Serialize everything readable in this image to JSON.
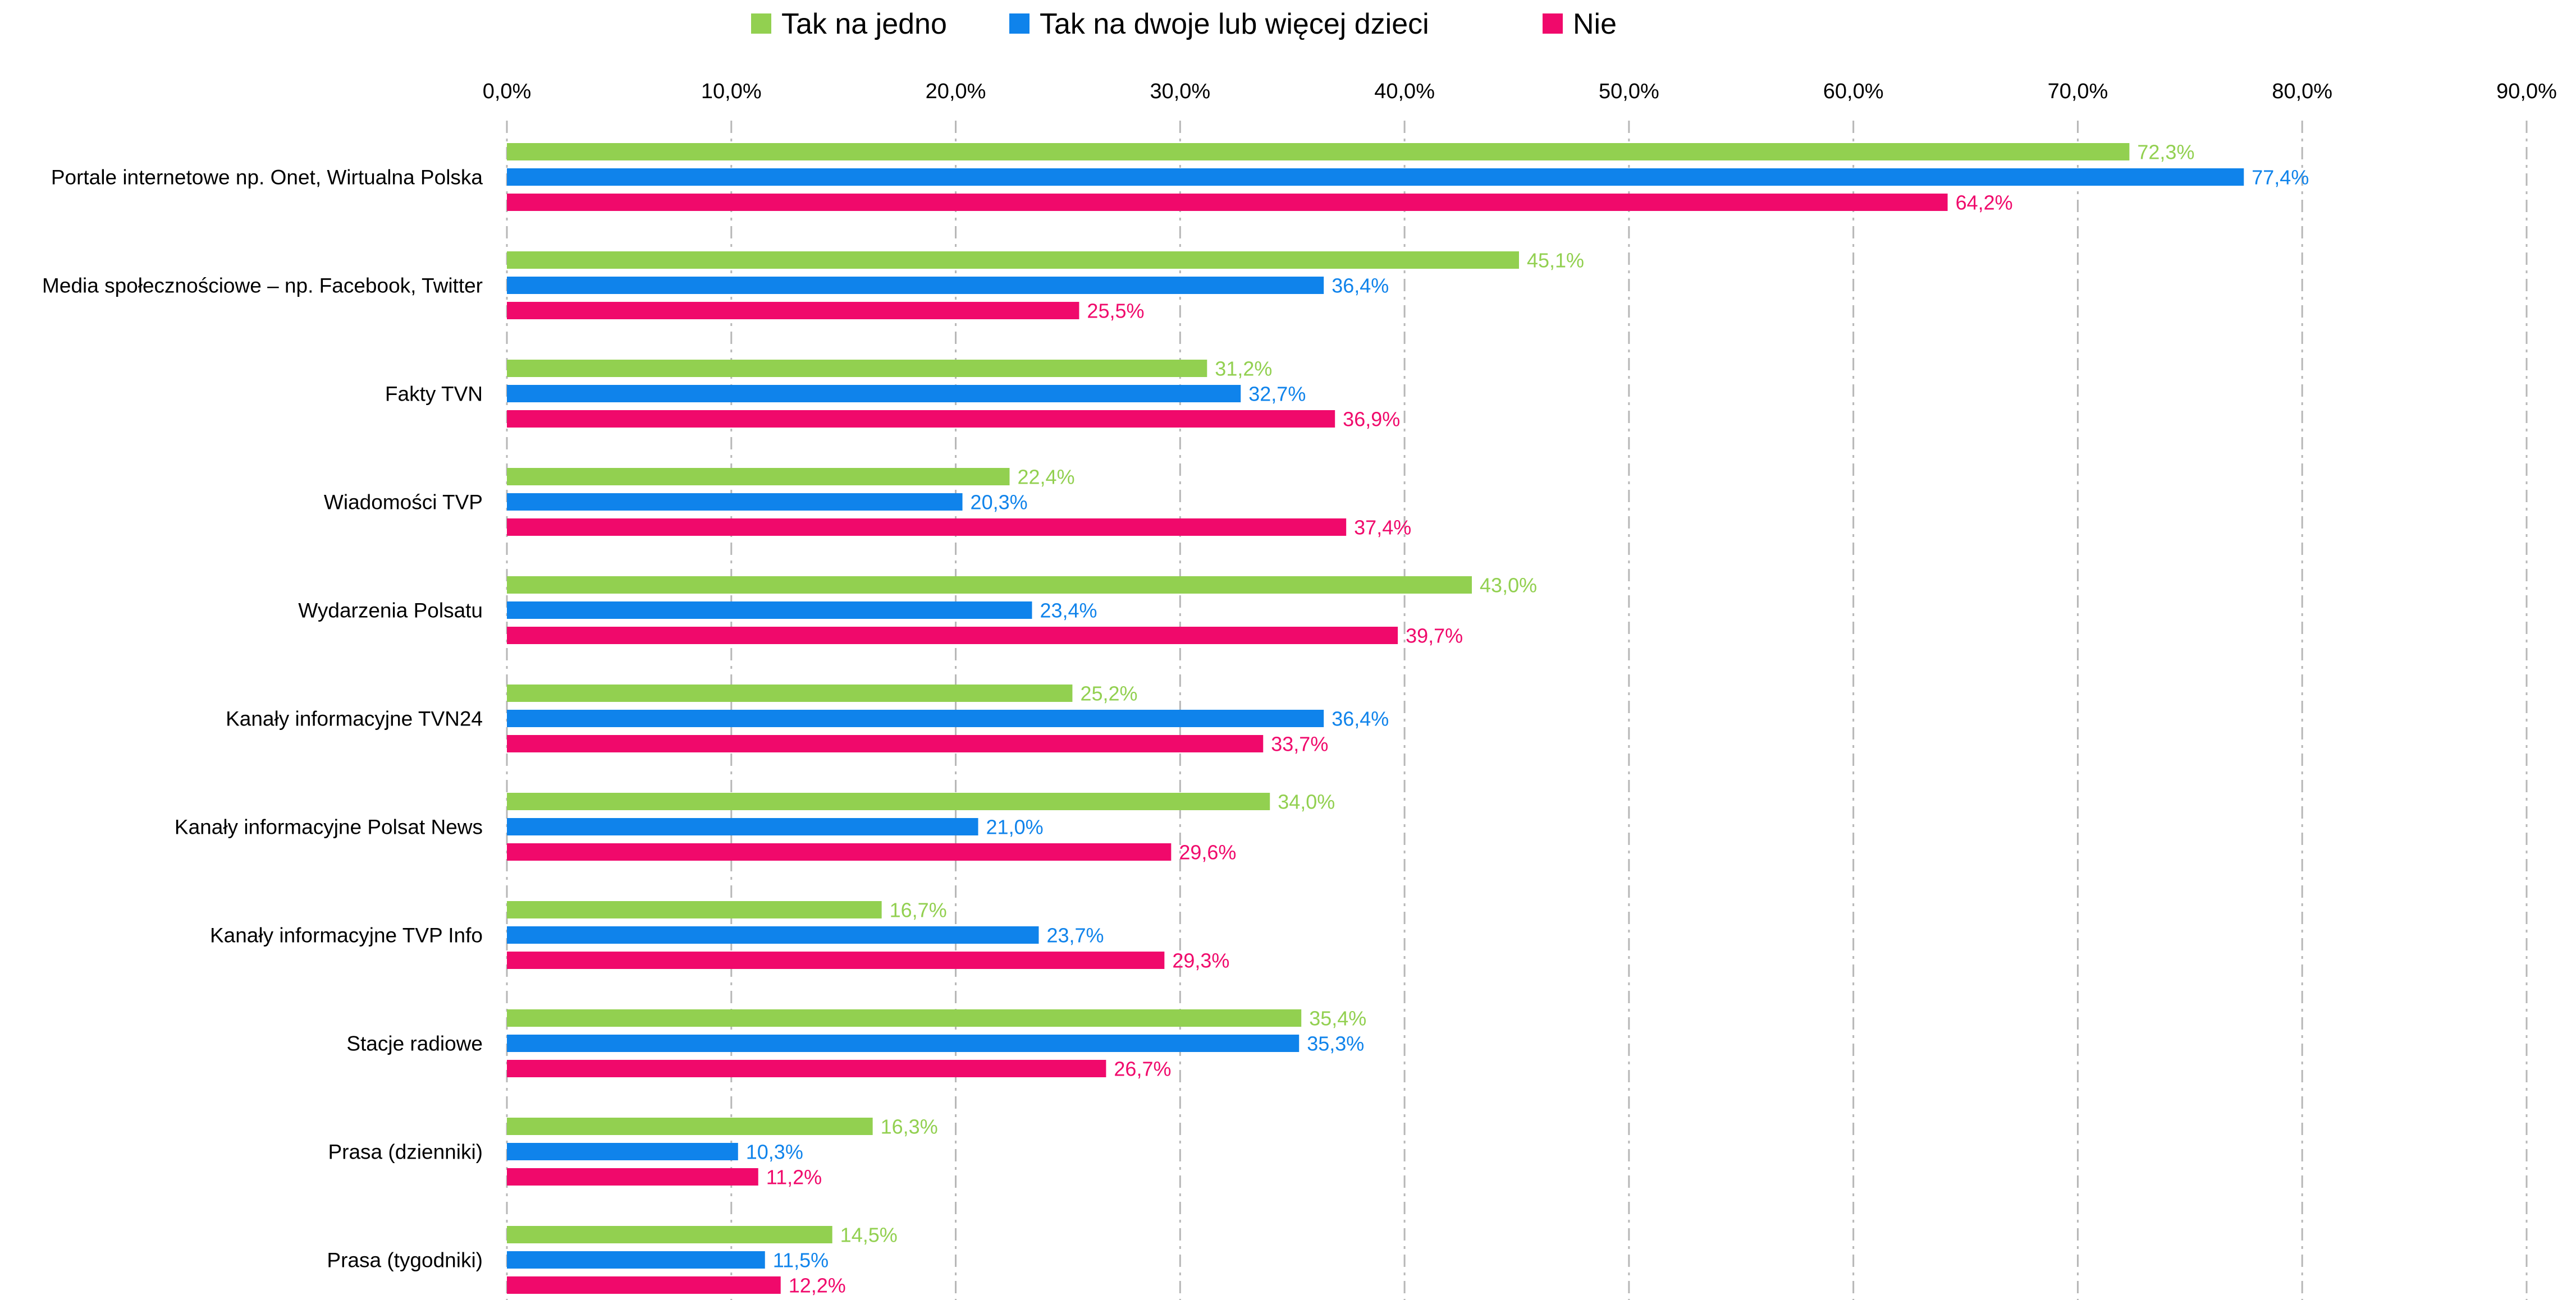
{
  "chart_data": {
    "type": "bar",
    "orientation": "horizontal",
    "title": "",
    "xlabel": "",
    "ylabel": "",
    "xlim": [
      0,
      90
    ],
    "tick_step": 10,
    "tick_labels": [
      "0,0%",
      "10,0%",
      "20,0%",
      "30,0%",
      "40,0%",
      "50,0%",
      "60,0%",
      "70,0%",
      "80,0%",
      "90,0%"
    ],
    "grid": true,
    "grid_style": "dash-dot vertical",
    "legend_position": "top",
    "categories": [
      "Portale internetowe np. Onet, Wirtualna Polska",
      "Media społecznościowe – np. Facebook, Twitter",
      "Fakty TVN",
      "Wiadomości TVP",
      "Wydarzenia Polsatu",
      "Kanały informacyjne TVN24",
      "Kanały informacyjne Polsat News",
      "Kanały informacyjne TVP Info",
      "Stacje radiowe",
      "Prasa (dzienniki)",
      "Prasa (tygodniki)"
    ],
    "series": [
      {
        "name": "Tak na jedno",
        "color": "#92D050",
        "values": [
          72.3,
          45.1,
          31.2,
          22.4,
          43.0,
          25.2,
          34.0,
          16.7,
          35.4,
          16.3,
          14.5
        ],
        "labels": [
          "72,3%",
          "45,1%",
          "31,2%",
          "22,4%",
          "43,0%",
          "25,2%",
          "34,0%",
          "16,7%",
          "35,4%",
          "16,3%",
          "14,5%"
        ]
      },
      {
        "name": "Tak na dwoje lub więcej dzieci",
        "color": "#0F83EB",
        "values": [
          77.4,
          36.4,
          32.7,
          20.3,
          23.4,
          36.4,
          21.0,
          23.7,
          35.3,
          10.3,
          11.5
        ],
        "labels": [
          "77,4%",
          "36,4%",
          "32,7%",
          "20,3%",
          "23,4%",
          "36,4%",
          "21,0%",
          "23,7%",
          "35,3%",
          "10,3%",
          "11,5%"
        ]
      },
      {
        "name": "Nie",
        "color": "#F0096B",
        "values": [
          64.2,
          25.5,
          36.9,
          37.4,
          39.7,
          33.7,
          29.6,
          29.3,
          26.7,
          11.2,
          12.2
        ],
        "labels": [
          "64,2%",
          "25,5%",
          "36,9%",
          "37,4%",
          "39,7%",
          "33,7%",
          "29,6%",
          "29,3%",
          "26,7%",
          "11,2%",
          "12,2%"
        ]
      }
    ]
  }
}
